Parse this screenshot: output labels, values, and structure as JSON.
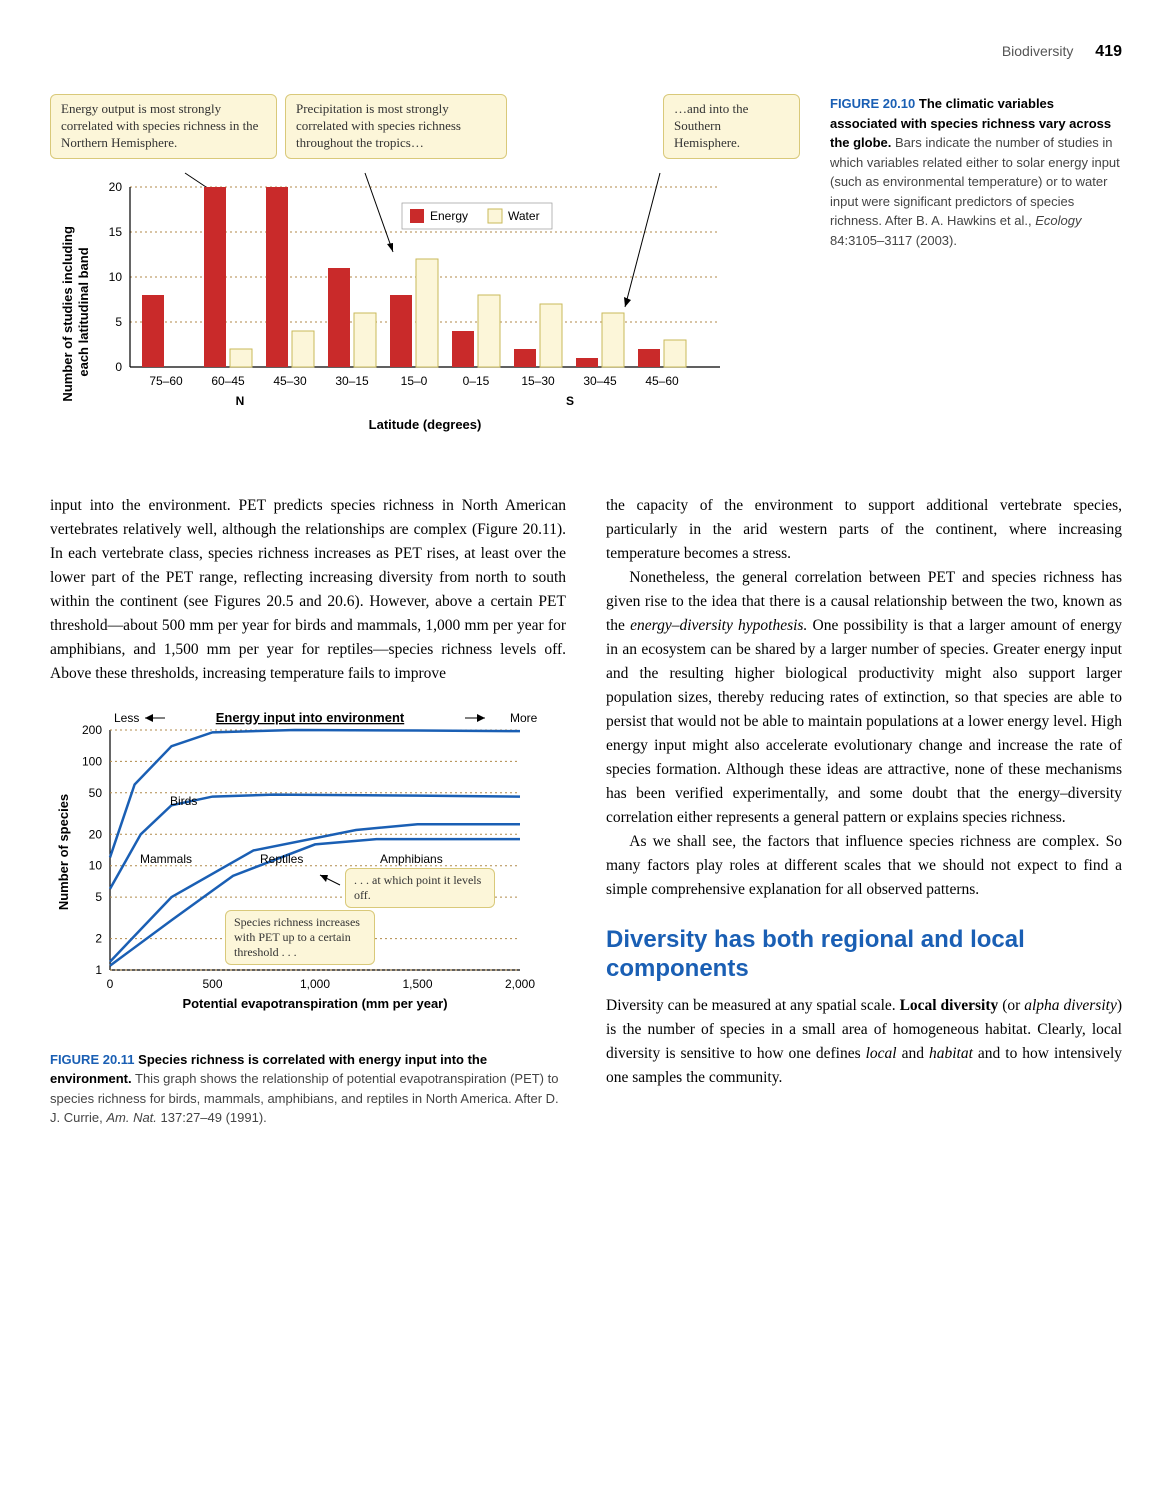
{
  "header": {
    "running": "Biodiversity",
    "page": "419"
  },
  "fig10": {
    "callouts": {
      "c1": "Energy output is most strongly correlated with species richness in the Northern Hemisphere.",
      "c2": "Precipitation is most strongly correlated with species richness throughout the tropics…",
      "c3": "…and into the Southern Hemisphere."
    },
    "legend": {
      "energy": "Energy",
      "water": "Water"
    },
    "xlabel": "Latitude (degrees)",
    "ylabel": "Number of studies including\neach latitudinal band",
    "n_label": "N",
    "s_label": "S",
    "categories": [
      "75–60",
      "60–45",
      "45–30",
      "30–15",
      "15–0",
      "0–15",
      "15–30",
      "30–45",
      "45–60"
    ],
    "energy_values": [
      8,
      20,
      20,
      11,
      8,
      4,
      2,
      1,
      2
    ],
    "water_values": [
      0,
      2,
      4,
      6,
      12,
      8,
      7,
      6,
      3
    ],
    "yticks": [
      0,
      5,
      10,
      15,
      20
    ],
    "bar_energy_color": "#c92a2a",
    "bar_water_fill": "#fcf6d9",
    "bar_water_stroke": "#c9b95a",
    "grid_color": "#b08a4a",
    "callout_bg": "#fcf6d9",
    "callout_border": "#d9c97a",
    "caption_num": "FIGURE 20.10",
    "caption_title": "The climatic variables associated with species richness vary across the globe.",
    "caption_body": "Bars indicate the number of studies in which variables related either to solar energy input (such as environmental temperature) or to water input were significant predictors of species richness. After B. A. Hawkins et al., ",
    "caption_source": "Ecology",
    "caption_cite": " 84:3105–3117 (2003)."
  },
  "left_para": "input into the environment. PET predicts species richness in North American vertebrates relatively well, although the relationships are complex (Figure 20.11). In each vertebrate class, species richness increases as PET rises, at least over the lower part of the PET range, reflecting increasing diversity from north to south within the continent (see Figures 20.5 and 20.6). However, above a certain PET threshold—about 500 mm per year for birds and mammals, 1,000 mm per year for amphibians, and 1,500 mm per year for reptiles—species richness levels off. Above these thresholds, increasing temperature fails to improve",
  "right_para1": "the capacity of the environment to support additional vertebrate species, particularly in the arid western parts of the continent, where increasing temperature becomes a stress.",
  "right_para2": "Nonetheless, the general correlation between PET and species richness has given rise to the idea that there is a causal relationship between the two, known as the ",
  "right_para2_em": "energy–diversity hypothesis.",
  "right_para2b": " One possibility is that a larger amount of energy in an ecosystem can be shared by a larger number of species. Greater energy input and the resulting higher biological productivity might also support larger population sizes, thereby reducing rates of extinction, so that species are able to persist that would not be able to maintain populations at a lower energy level. High energy input might also accelerate evolutionary change and increase the rate of species formation. Although these ideas are attractive, none of these mechanisms has been verified experimentally, and some doubt that the energy–diversity correlation either represents a general pattern or explains species richness.",
  "right_para3": "As we shall see, the factors that influence species richness are complex. So many factors play roles at different scales that we should not expect to find a simple comprehensive explanation for all observed patterns.",
  "section_heading": "Diversity has both regional and local components",
  "right_para4a": "Diversity can be measured at any spatial scale. ",
  "right_para4_b1": "Local diversity",
  "right_para4b": " (or ",
  "right_para4_em": "alpha diversity",
  "right_para4c": ") is the number of species in a small area of homogeneous habitat. Clearly, local diversity is sensitive to how one defines ",
  "right_para4_em2": "local",
  "right_para4d": " and ",
  "right_para4_em3": "habitat",
  "right_para4e": " and to how intensively one samples the community.",
  "fig11": {
    "title_bar": "Energy input into environment",
    "less": "Less",
    "more": "More",
    "xlabel": "Potential evapotranspiration (mm per year)",
    "ylabel": "Number of species",
    "series_labels": {
      "birds": "Birds",
      "mammals": "Mammals",
      "reptiles": "Reptiles",
      "amphibians": "Amphibians"
    },
    "callout1": "Species richness increases with PET up to a certain threshold . . .",
    "callout2": ". . . at which point it levels off.",
    "xticks": [
      "0",
      "500",
      "1,000",
      "1,500",
      "2,000"
    ],
    "yticks": [
      "1",
      "2",
      "5",
      "10",
      "20",
      "50",
      "100",
      "200"
    ],
    "colors": {
      "birds": "#1a5fb4",
      "mammals": "#1a5fb4",
      "reptiles": "#1a5fb4",
      "amphibians": "#1a5fb4",
      "callout_bg": "#fcf6d9",
      "callout_border": "#d9c97a",
      "grid": "#b08a4a"
    },
    "paths": {
      "birds": [
        [
          0,
          12
        ],
        [
          120,
          60
        ],
        [
          300,
          140
        ],
        [
          500,
          190
        ],
        [
          900,
          200
        ],
        [
          1500,
          198
        ],
        [
          2000,
          195
        ]
      ],
      "mammals": [
        [
          0,
          6
        ],
        [
          150,
          20
        ],
        [
          300,
          38
        ],
        [
          500,
          46
        ],
        [
          800,
          48
        ],
        [
          1500,
          47
        ],
        [
          2000,
          46
        ]
      ],
      "reptiles": [
        [
          0,
          1.2
        ],
        [
          300,
          5
        ],
        [
          700,
          14
        ],
        [
          1200,
          22
        ],
        [
          1500,
          25
        ],
        [
          1800,
          25
        ],
        [
          2000,
          25
        ]
      ],
      "amphibians": [
        [
          0,
          1.1
        ],
        [
          300,
          3
        ],
        [
          600,
          8
        ],
        [
          1000,
          16
        ],
        [
          1300,
          18
        ],
        [
          1700,
          18
        ],
        [
          2000,
          18
        ]
      ]
    },
    "caption_num": "FIGURE 20.11",
    "caption_title": "Species richness is correlated with energy input into the environment.",
    "caption_body": "This graph shows the relationship of potential evapotranspiration (PET) to species richness for birds, mammals, amphibians, and reptiles in North America. After D. J. Currie, ",
    "caption_source": "Am. Nat.",
    "caption_cite": " 137:27–49 (1991)."
  }
}
